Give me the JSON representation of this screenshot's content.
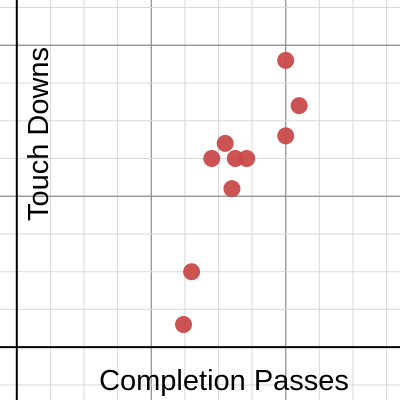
{
  "chart_data": {
    "type": "scatter",
    "title": "",
    "xlabel": "Completion Passes",
    "ylabel": "Touch Downs",
    "xlim": [
      -0.25,
      5.7
    ],
    "ylim": [
      -0.7,
      4.6
    ],
    "grid": true,
    "series": [
      {
        "values": [
          {
            "x": 2.9,
            "y": 2.5
          },
          {
            "x": 3.1,
            "y": 2.7
          },
          {
            "x": 3.25,
            "y": 2.5
          },
          {
            "x": 3.42,
            "y": 2.5
          },
          {
            "x": 3.2,
            "y": 2.1
          },
          {
            "x": 2.6,
            "y": 1.0
          },
          {
            "x": 2.48,
            "y": 0.3
          },
          {
            "x": 4.0,
            "y": 3.8
          },
          {
            "x": 4.2,
            "y": 3.2
          },
          {
            "x": 4.0,
            "y": 2.8
          }
        ]
      }
    ]
  },
  "colors": {
    "point": "#c94a4a",
    "grid_minor": "#d9d9d9",
    "grid_major": "#8a8a8a",
    "axis": "#000000"
  }
}
